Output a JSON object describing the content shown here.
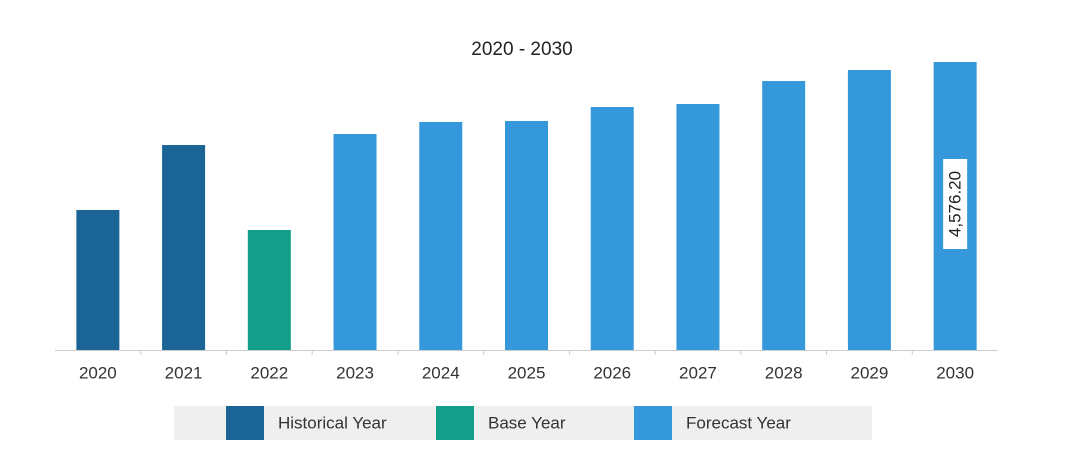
{
  "chart_data": {
    "type": "bar",
    "title": "2020 - 2030",
    "categories": [
      "2020",
      "2021",
      "2022",
      "2023",
      "2024",
      "2025",
      "2026",
      "2027",
      "2028",
      "2029",
      "2030"
    ],
    "values": [
      2225,
      3257,
      1907,
      3432,
      3623,
      3639,
      3861,
      3909,
      4274,
      4449,
      4576.2
    ],
    "value_labels": [
      null,
      null,
      null,
      null,
      null,
      null,
      null,
      null,
      null,
      null,
      "4,576.20"
    ],
    "colors": [
      "#1a6496",
      "#1a6496",
      "#139e8a",
      "#3598db",
      "#3598db",
      "#3598db",
      "#3598db",
      "#3598db",
      "#3598db",
      "#3598db",
      "#3598db"
    ],
    "legend": [
      {
        "label": "Historical Year",
        "color": "#1a6496"
      },
      {
        "label": "Base Year",
        "color": "#139e8a"
      },
      {
        "label": "Forecast Year",
        "color": "#3598db"
      }
    ]
  }
}
